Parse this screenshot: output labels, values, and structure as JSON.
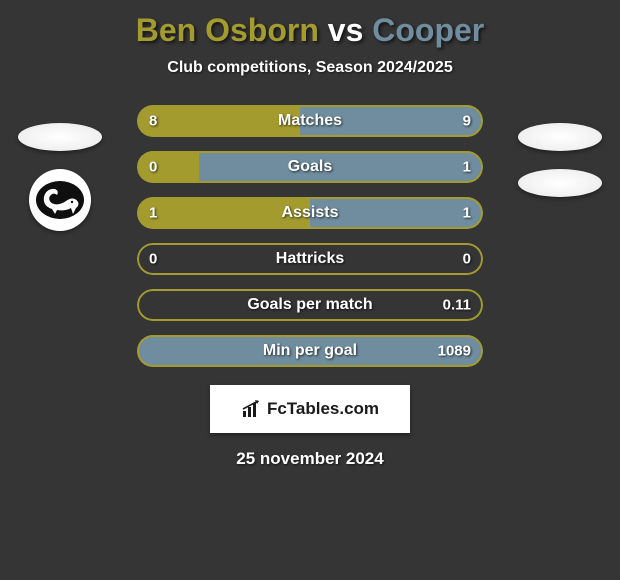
{
  "title": {
    "player1": "Ben Osborn",
    "vs": "vs",
    "player2": "Cooper",
    "player1_color": "#a39b2e",
    "vs_color": "#ffffff",
    "player2_color": "#6f8d9e"
  },
  "subtitle": "Club competitions, Season 2024/2025",
  "left_color": "#a39b2e",
  "right_color": "#6f8d9e",
  "border_width": 2,
  "bars": [
    {
      "label": "Matches",
      "left_val": "8",
      "right_val": "9",
      "left_pct": 47,
      "right_pct": 53
    },
    {
      "label": "Goals",
      "left_val": "0",
      "right_val": "1",
      "left_pct": 18,
      "right_pct": 82
    },
    {
      "label": "Assists",
      "left_val": "1",
      "right_val": "1",
      "left_pct": 50,
      "right_pct": 50
    },
    {
      "label": "Hattricks",
      "left_val": "0",
      "right_val": "0",
      "left_pct": 50,
      "right_pct": 50,
      "empty": true
    },
    {
      "label": "Goals per match",
      "left_val": "",
      "right_val": "0.11",
      "left_pct": 0,
      "right_pct": 0,
      "empty": true
    },
    {
      "label": "Min per goal",
      "left_val": "",
      "right_val": "1089",
      "left_pct": 0,
      "right_pct": 100
    }
  ],
  "source": "FcTables.com",
  "date": "25 november 2024",
  "background_color": "#353535"
}
